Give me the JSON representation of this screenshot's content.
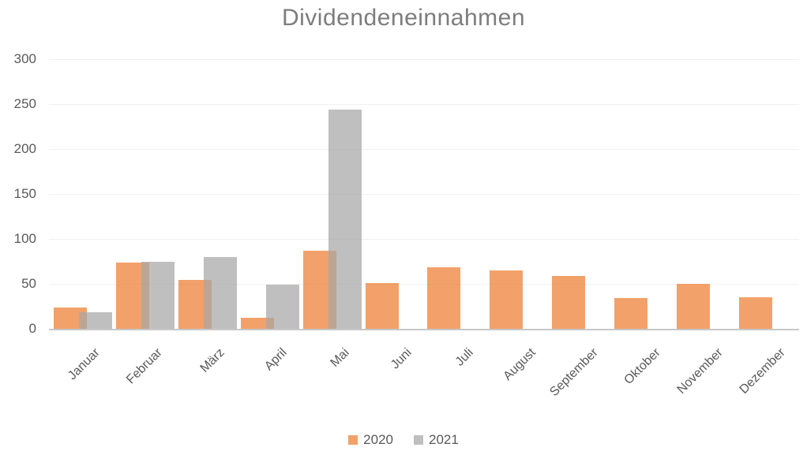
{
  "chart_data": {
    "type": "bar",
    "title": "Dividendeneinnahmen",
    "categories": [
      "Januar",
      "Februar",
      "März",
      "April",
      "Mai",
      "Juni",
      "Juli",
      "August",
      "September",
      "Oktober",
      "November",
      "Dezember"
    ],
    "series": [
      {
        "name": "2020",
        "color": "#ED7D31",
        "fill_opacity": 0.72,
        "values": [
          24,
          74,
          54,
          12,
          87,
          51,
          68,
          65,
          59,
          34,
          50,
          35
        ]
      },
      {
        "name": "2021",
        "color": "#A6A6A6",
        "fill_opacity": 0.72,
        "values": [
          18,
          75,
          80,
          49,
          244,
          0,
          0,
          0,
          0,
          0,
          0,
          0
        ]
      }
    ],
    "ylim": [
      0,
      300
    ],
    "ytick_step": 50,
    "ytick_labels": [
      "0",
      "50",
      "100",
      "150",
      "200",
      "250",
      "300"
    ],
    "xlabel": "",
    "ylabel": "",
    "grid": true,
    "legend_position": "bottom",
    "bar_overlap": true
  },
  "colors": {
    "title_text": "#7D7D7D",
    "axis_text": "#595959",
    "gridline": "#F0F0F0",
    "axis_line": "#C8C8C8",
    "background": "#FFFFFF",
    "series_2020": "#ED7D31",
    "series_2021": "#A6A6A6"
  }
}
